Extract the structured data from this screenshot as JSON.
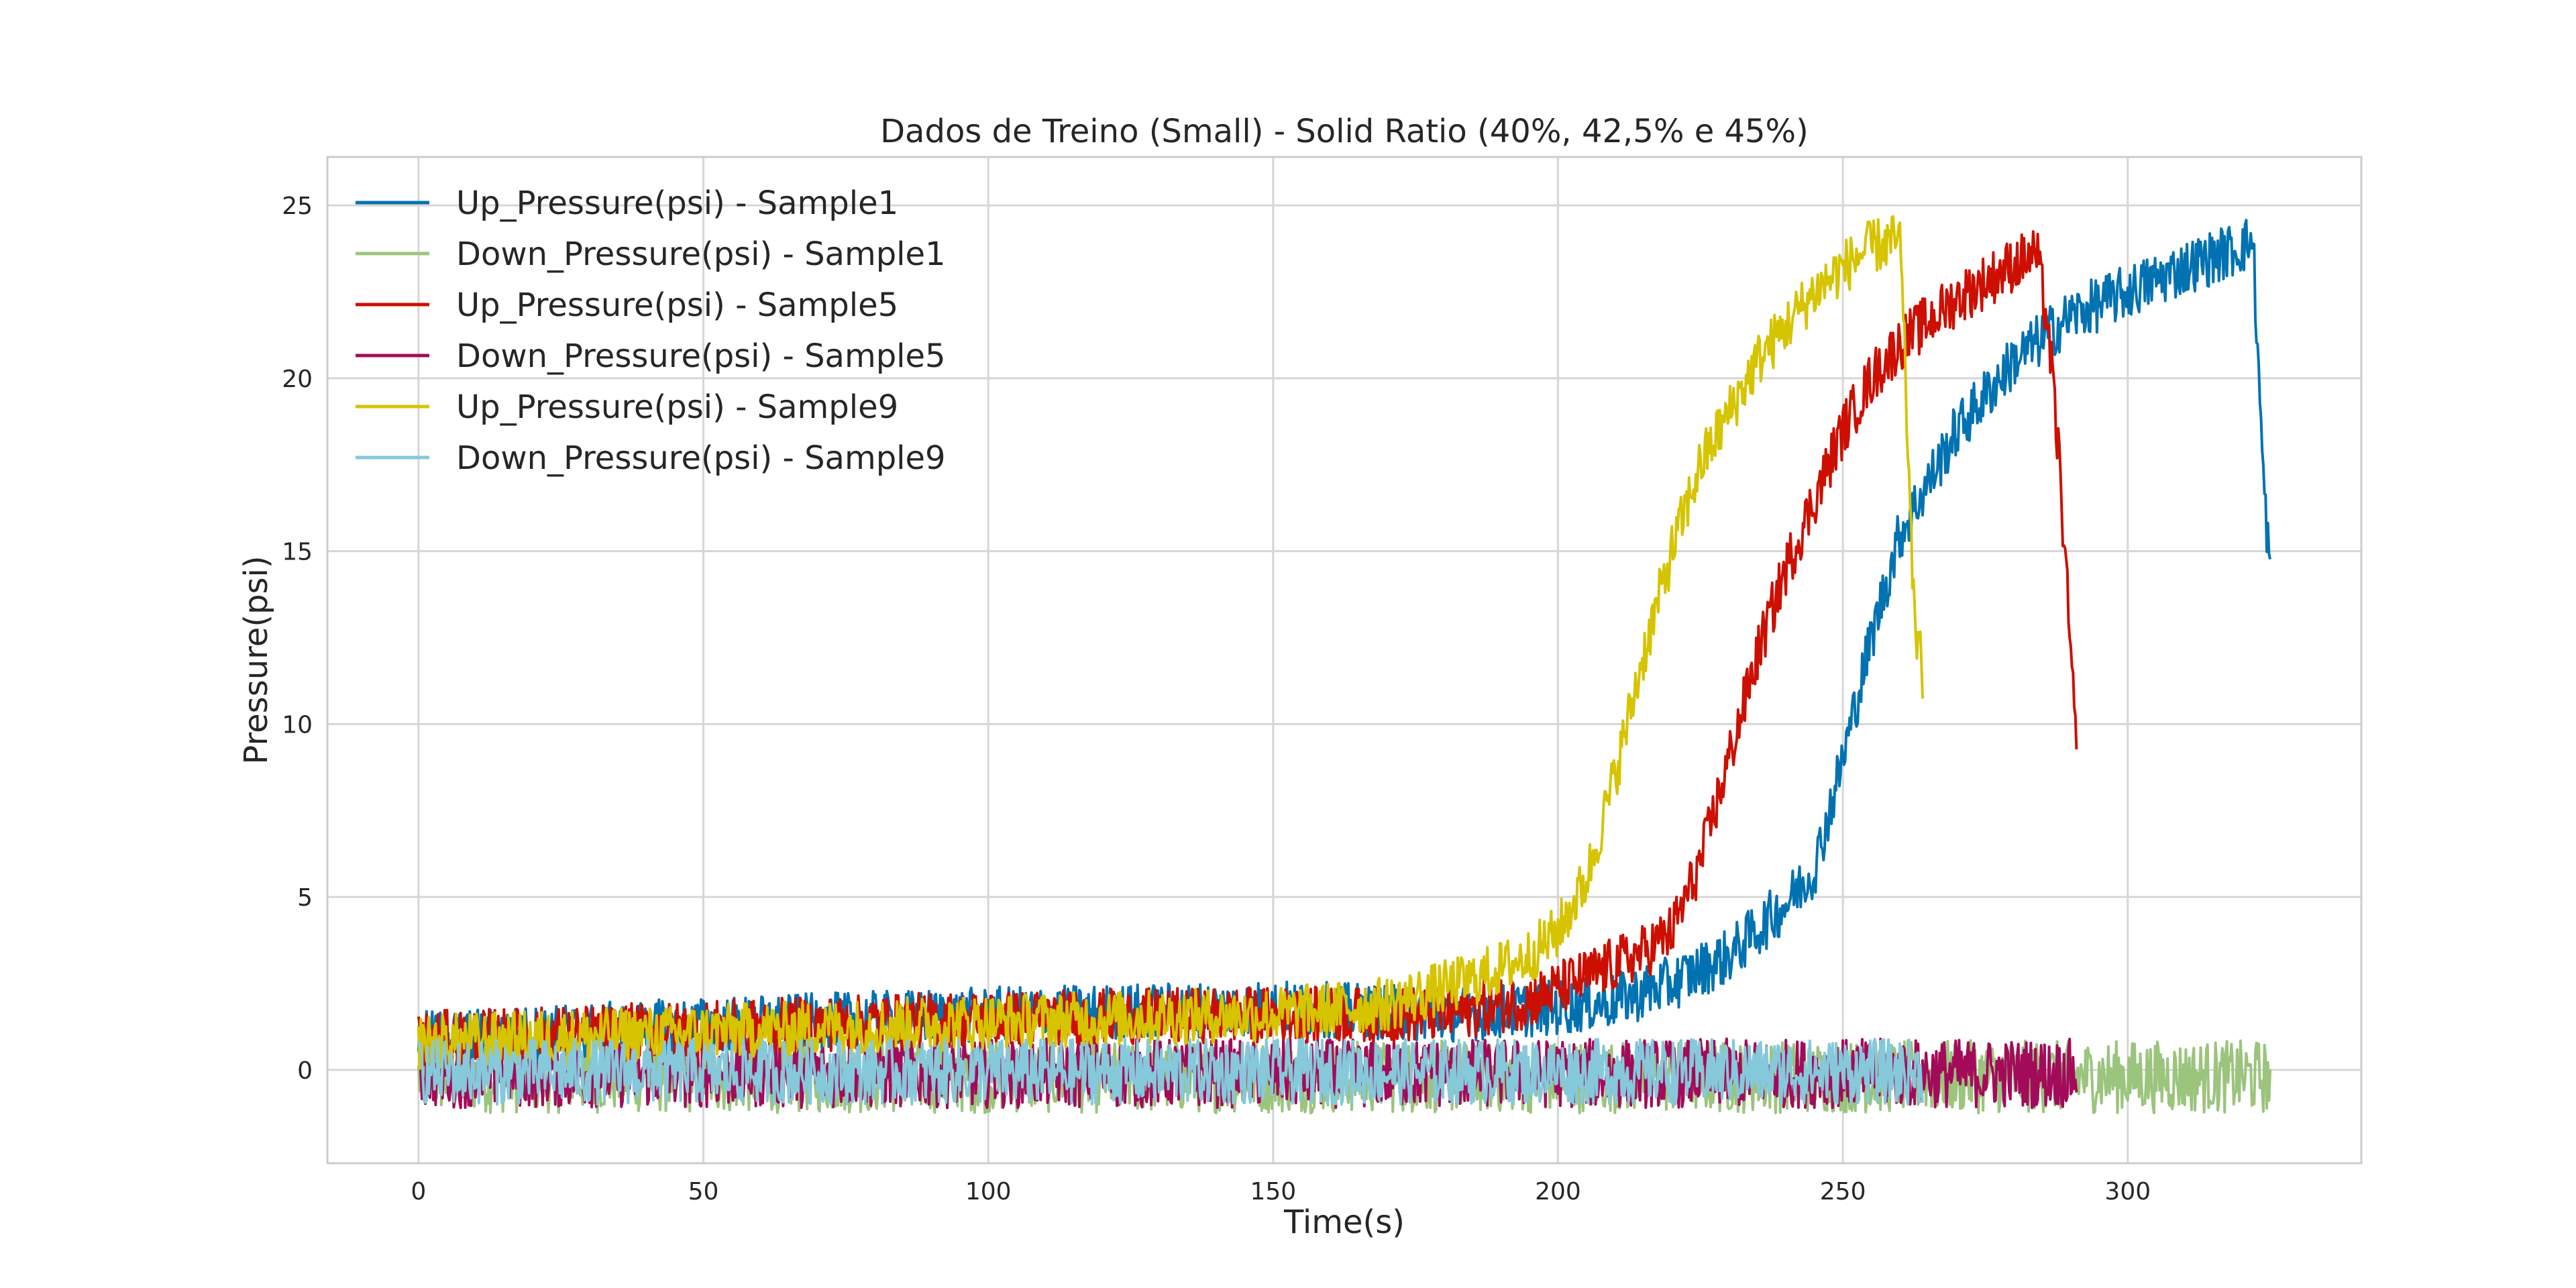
{
  "chart_data": {
    "type": "line",
    "title": "Dados de Treino (Small) - Solid Ratio (40%, 42,5% e 45%)",
    "xlabel": "Time(s)",
    "ylabel": "Pressure(psi)",
    "xlim": [
      -16,
      341
    ],
    "ylim": [
      -2.7,
      26.4
    ],
    "xticks": [
      0,
      50,
      100,
      150,
      200,
      250,
      300
    ],
    "yticks": [
      0,
      5,
      10,
      15,
      20,
      25
    ],
    "grid": true,
    "legend": "top-left",
    "series": [
      {
        "name": "Up_Pressure(psi) - Sample1",
        "color": "#0072b2",
        "band": 1.6,
        "x": [
          0,
          50,
          100,
          150,
          180,
          200,
          210,
          220,
          230,
          240,
          245,
          250,
          255,
          260,
          270,
          280,
          290,
          300,
          310,
          320,
          322,
          323,
          324,
          325
        ],
        "y": [
          0.9,
          1.3,
          1.6,
          1.8,
          1.6,
          1.8,
          2.0,
          2.5,
          3.3,
          4.8,
          5.8,
          9.0,
          12.5,
          15.5,
          18.5,
          20.5,
          21.8,
          22.5,
          23.2,
          23.8,
          24.0,
          20.0,
          16.5,
          14.5
        ]
      },
      {
        "name": "Down_Pressure(psi) - Sample1",
        "color": "#9bc47d",
        "band": 2.1,
        "x": [
          0,
          50,
          100,
          150,
          200,
          250,
          300,
          325
        ],
        "y": [
          -0.2,
          -0.2,
          -0.2,
          -0.2,
          -0.2,
          -0.2,
          -0.2,
          -0.2
        ]
      },
      {
        "name": "Up_Pressure(psi) - Sample5",
        "color": "#cc0f00",
        "band": 1.6,
        "x": [
          0,
          50,
          100,
          150,
          180,
          195,
          205,
          215,
          220,
          225,
          230,
          235,
          240,
          245,
          250,
          255,
          260,
          270,
          280,
          284,
          286,
          288,
          290,
          291
        ],
        "y": [
          0.9,
          1.2,
          1.5,
          1.6,
          1.6,
          2.0,
          2.7,
          3.4,
          4.0,
          6.0,
          9.0,
          12.0,
          14.5,
          16.5,
          18.5,
          20.0,
          21.0,
          22.3,
          23.3,
          23.6,
          21.5,
          17.5,
          12.0,
          9.0
        ]
      },
      {
        "name": "Down_Pressure(psi) - Sample5",
        "color": "#a30b5a",
        "band": 2.0,
        "x": [
          0,
          50,
          100,
          150,
          200,
          250,
          291
        ],
        "y": [
          -0.1,
          -0.1,
          -0.1,
          -0.1,
          -0.1,
          -0.1,
          -0.1
        ]
      },
      {
        "name": "Up_Pressure(psi) - Sample9",
        "color": "#d6c400",
        "band": 1.6,
        "x": [
          0,
          50,
          100,
          150,
          170,
          185,
          195,
          200,
          205,
          210,
          215,
          220,
          225,
          230,
          235,
          240,
          245,
          250,
          255,
          260,
          261,
          262,
          263,
          264
        ],
        "y": [
          0.8,
          1.1,
          1.4,
          1.6,
          1.9,
          2.6,
          3.3,
          4.0,
          5.5,
          8.5,
          12.0,
          15.0,
          17.5,
          19.0,
          20.5,
          21.5,
          22.5,
          23.2,
          23.8,
          24.0,
          20.0,
          15.0,
          12.5,
          11.5
        ]
      },
      {
        "name": "Down_Pressure(psi) - Sample9",
        "color": "#85c9db",
        "band": 1.9,
        "x": [
          0,
          50,
          100,
          150,
          200,
          264
        ],
        "y": [
          -0.05,
          -0.05,
          -0.05,
          -0.05,
          -0.05,
          -0.05
        ]
      }
    ]
  }
}
